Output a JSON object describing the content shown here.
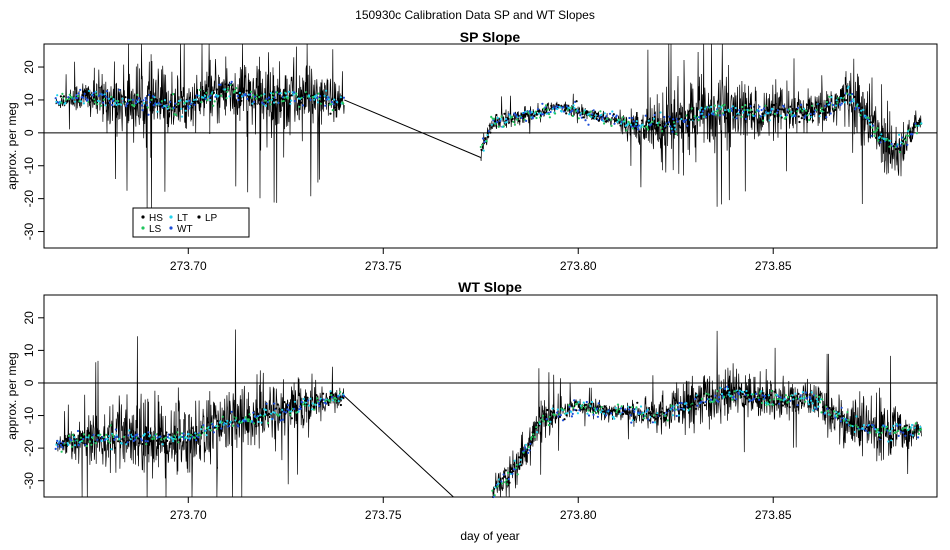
{
  "suptitle": "150930c   Calibration Data SP and WT Slopes",
  "xlabel": "day of year",
  "colors": {
    "HS": "#000000",
    "LS": "#22c55e",
    "LT": "#22d3ee",
    "WT": "#1d4ed8",
    "LP": "#000000",
    "line": "#000000"
  },
  "chart_data": [
    {
      "type": "line",
      "title": "SP Slope",
      "ylabel": "approx. per meg",
      "xlim": [
        273.663,
        273.892
      ],
      "ylim": [
        -35,
        27
      ],
      "x_ticks": [
        273.7,
        273.75,
        273.8,
        273.85
      ],
      "x_tick_labels": [
        "273.70",
        "273.75",
        "273.80",
        "273.85"
      ],
      "y_ticks": [
        -30,
        -20,
        -10,
        0,
        10,
        20
      ],
      "y_tick_labels": [
        "-30",
        "-20",
        "-10",
        "0",
        "10",
        "20"
      ],
      "hline": 0,
      "legend": {
        "location": "bottom-left",
        "entries": [
          "HS",
          "LS",
          "LT",
          "WT",
          "LP"
        ]
      },
      "segments": [
        {
          "x_start": 273.666,
          "x_end": 273.74,
          "base": [
            [
              273.666,
              9
            ],
            [
              273.672,
              11
            ],
            [
              273.68,
              10
            ],
            [
              273.69,
              9
            ],
            [
              273.7,
              9
            ],
            [
              273.71,
              13
            ],
            [
              273.72,
              10
            ],
            [
              273.73,
              11
            ],
            [
              273.74,
              9
            ]
          ],
          "noise": [
            [
              273.666,
              1.5
            ],
            [
              273.675,
              6
            ],
            [
              273.69,
              12
            ],
            [
              273.7,
              6
            ],
            [
              273.71,
              10
            ],
            [
              273.73,
              12
            ],
            [
              273.74,
              3
            ]
          ]
        },
        {
          "x_start": 273.775,
          "x_end": 273.888,
          "base": [
            [
              273.775,
              -6
            ],
            [
              273.778,
              3
            ],
            [
              273.785,
              5
            ],
            [
              273.795,
              8
            ],
            [
              273.805,
              5
            ],
            [
              273.815,
              2
            ],
            [
              273.825,
              3
            ],
            [
              273.835,
              7
            ],
            [
              273.845,
              6
            ],
            [
              273.86,
              6
            ],
            [
              273.87,
              11
            ],
            [
              273.878,
              -2
            ],
            [
              273.882,
              -5
            ],
            [
              273.888,
              4
            ]
          ],
          "noise": [
            [
              273.775,
              3
            ],
            [
              273.79,
              2
            ],
            [
              273.81,
              1.5
            ],
            [
              273.82,
              10
            ],
            [
              273.83,
              12
            ],
            [
              273.845,
              8
            ],
            [
              273.86,
              5
            ],
            [
              273.878,
              12
            ],
            [
              273.888,
              2
            ]
          ]
        }
      ],
      "bridge": [
        [
          273.74,
          10
        ],
        [
          273.775,
          -7.5
        ]
      ]
    },
    {
      "type": "line",
      "title": "WT Slope",
      "ylabel": "approx. per meg",
      "xlabel": "day of year",
      "xlim": [
        273.663,
        273.892
      ],
      "ylim": [
        -35,
        27
      ],
      "x_ticks": [
        273.7,
        273.75,
        273.8,
        273.85
      ],
      "x_tick_labels": [
        "273.70",
        "273.75",
        "273.80",
        "273.85"
      ],
      "y_ticks": [
        -30,
        -20,
        -10,
        0,
        10,
        20
      ],
      "y_tick_labels": [
        "-30",
        "-20",
        "-10",
        "0",
        "10",
        "20"
      ],
      "hline": 0,
      "segments": [
        {
          "x_start": 273.666,
          "x_end": 273.74,
          "base": [
            [
              273.666,
              -19
            ],
            [
              273.675,
              -17
            ],
            [
              273.69,
              -17
            ],
            [
              273.7,
              -17
            ],
            [
              273.71,
              -12
            ],
            [
              273.72,
              -10
            ],
            [
              273.73,
              -7
            ],
            [
              273.74,
              -4
            ]
          ],
          "noise": [
            [
              273.666,
              2
            ],
            [
              273.675,
              8
            ],
            [
              273.69,
              12
            ],
            [
              273.705,
              10
            ],
            [
              273.72,
              10
            ],
            [
              273.732,
              6
            ],
            [
              273.74,
              2
            ]
          ]
        },
        {
          "x_start": 273.778,
          "x_end": 273.888,
          "base": [
            [
              273.778,
              -33
            ],
            [
              273.785,
              -25
            ],
            [
              273.79,
              -12
            ],
            [
              273.8,
              -7
            ],
            [
              273.81,
              -9
            ],
            [
              273.82,
              -10
            ],
            [
              273.83,
              -6
            ],
            [
              273.84,
              -3
            ],
            [
              273.85,
              -5
            ],
            [
              273.86,
              -5
            ],
            [
              273.87,
              -13
            ],
            [
              273.88,
              -15
            ],
            [
              273.888,
              -14
            ]
          ],
          "noise": [
            [
              273.778,
              4
            ],
            [
              273.79,
              6
            ],
            [
              273.8,
              2
            ],
            [
              273.815,
              3
            ],
            [
              273.83,
              8
            ],
            [
              273.845,
              6
            ],
            [
              273.86,
              5
            ],
            [
              273.878,
              10
            ],
            [
              273.888,
              2
            ]
          ]
        }
      ],
      "bridge": [
        [
          273.74,
          -4
        ],
        [
          273.768,
          -35
        ]
      ]
    }
  ]
}
